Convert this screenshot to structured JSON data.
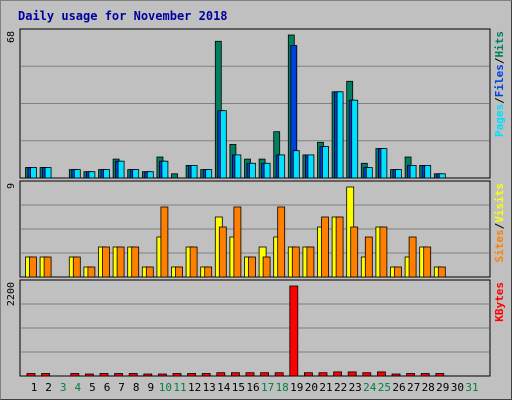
{
  "chart_data": {
    "type": "bar",
    "title": "Daily usage for November 2018",
    "days": [
      "1",
      "2",
      "3",
      "4",
      "5",
      "6",
      "7",
      "8",
      "9",
      "10",
      "11",
      "12",
      "13",
      "14",
      "15",
      "16",
      "17",
      "18",
      "19",
      "20",
      "21",
      "22",
      "23",
      "24",
      "25",
      "26",
      "27",
      "28",
      "29",
      "30",
      "31"
    ],
    "weekend_days": [
      3,
      4,
      10,
      11,
      17,
      18,
      24,
      25,
      31
    ],
    "colors": {
      "hits": "#008060",
      "files": "#0040e0",
      "pages": "#00e0ff",
      "visits": "#ffff00",
      "sites": "#ff8000",
      "kbytes": "#ff0000",
      "weekday_label": "#000000",
      "weekend_label": "#008040",
      "title": "#0000a0"
    },
    "panels": [
      {
        "id": "hits-files-pages",
        "ymax_label": "68",
        "ylim": [
          0,
          68
        ],
        "legend": [
          {
            "text": "Pages",
            "color": "#00e0ff"
          },
          {
            "text": "/",
            "color": "#000000"
          },
          {
            "text": "Files",
            "color": "#0040e0"
          },
          {
            "text": "/",
            "color": "#000000"
          },
          {
            "text": "Hits",
            "color": "#008060"
          }
        ],
        "series": [
          {
            "key": "hits",
            "color": "#008060",
            "values": [
              5,
              5,
              0,
              4,
              3,
              4,
              9,
              4,
              3,
              10,
              2,
              6,
              4,
              65,
              16,
              9,
              9,
              22,
              68,
              11,
              17,
              41,
              46,
              7,
              14,
              4,
              10,
              6,
              2,
              0
            ]
          },
          {
            "key": "files",
            "color": "#0040e0",
            "values": [
              5,
              5,
              0,
              4,
              3,
              4,
              8,
              4,
              3,
              8,
              0,
              6,
              4,
              32,
              11,
              7,
              7,
              11,
              63,
              11,
              15,
              41,
              37,
              5,
              14,
              4,
              6,
              6,
              2,
              0
            ]
          },
          {
            "key": "pages",
            "color": "#00e0ff",
            "values": [
              5,
              5,
              0,
              4,
              3,
              4,
              8,
              4,
              3,
              8,
              0,
              6,
              4,
              32,
              11,
              7,
              7,
              11,
              13,
              11,
              15,
              41,
              37,
              5,
              14,
              4,
              6,
              6,
              2,
              0
            ]
          }
        ]
      },
      {
        "id": "visits-sites",
        "ymax_label": "9",
        "ylim": [
          0,
          9
        ],
        "legend": [
          {
            "text": "Sites",
            "color": "#ff8000"
          },
          {
            "text": "/",
            "color": "#000000"
          },
          {
            "text": "Visits",
            "color": "#ffff00"
          }
        ],
        "series": [
          {
            "key": "visits",
            "color": "#ffff00",
            "values": [
              2,
              2,
              0,
              2,
              1,
              3,
              3,
              3,
              1,
              4,
              1,
              3,
              1,
              6,
              4,
              2,
              3,
              4,
              3,
              3,
              5,
              6,
              9,
              2,
              5,
              1,
              2,
              3,
              1,
              0
            ]
          },
          {
            "key": "sites",
            "color": "#ff8000",
            "values": [
              2,
              2,
              0,
              2,
              1,
              3,
              3,
              3,
              1,
              7,
              1,
              3,
              1,
              5,
              7,
              2,
              2,
              7,
              3,
              3,
              6,
              6,
              5,
              4,
              5,
              1,
              4,
              3,
              1,
              0
            ]
          }
        ]
      },
      {
        "id": "kbytes",
        "ymax_label": "2200",
        "ylim": [
          0,
          2200
        ],
        "legend": [
          {
            "text": "KBytes",
            "color": "#ff0000"
          }
        ],
        "series": [
          {
            "key": "kbytes",
            "color": "#ff0000",
            "values": [
              60,
              60,
              0,
              60,
              40,
              60,
              60,
              60,
              40,
              40,
              60,
              60,
              60,
              80,
              80,
              80,
              80,
              80,
              2200,
              80,
              80,
              100,
              100,
              80,
              100,
              40,
              60,
              60,
              60,
              0
            ]
          }
        ]
      }
    ]
  }
}
